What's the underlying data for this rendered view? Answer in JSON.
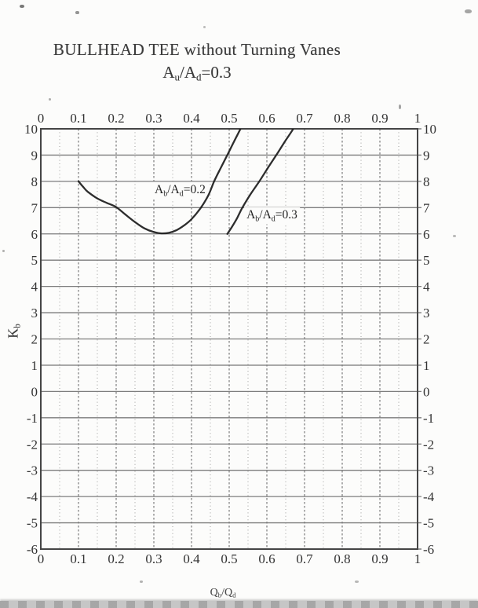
{
  "page": {
    "background_color": "#fcfcfb",
    "scan_band_color": "#c2c2c2"
  },
  "chart_data": {
    "type": "line",
    "title": "BULLHEAD TEE without Turning Vanes",
    "subtitle": "Au/Ad=0.3",
    "xlabel": "Qb/Qd",
    "ylabel": "Kb",
    "xlim": [
      0,
      1
    ],
    "ylim": [
      -6,
      10
    ],
    "x_tick_values": [
      0,
      0.1,
      0.2,
      0.3,
      0.4,
      0.5,
      0.6,
      0.7,
      0.8,
      0.9,
      1
    ],
    "x_tick_labels": [
      "0",
      "0.1",
      "0.2",
      "0.3",
      "0.4",
      "0.5",
      "0.6",
      "0.7",
      "0.8",
      "0.9",
      "1"
    ],
    "y_tick_values": [
      10,
      9,
      8,
      7,
      6,
      5,
      4,
      3,
      2,
      1,
      0,
      -1,
      -2,
      -3,
      -4,
      -5,
      -6
    ],
    "y_tick_labels": [
      "10",
      "9",
      "8",
      "7",
      "6",
      "5",
      "4",
      "3",
      "2",
      "1",
      "0",
      "-1",
      "-2",
      "-3",
      "-4",
      "-5",
      "-6"
    ],
    "axes_mirrored": true,
    "grid": {
      "horizontal_step": 1,
      "horizontal_style": "solid gray",
      "vertical_minor_step": 0.05,
      "vertical_major_step": 0.1,
      "vertical_style": "dotted gray"
    },
    "legend_position": "inline-curve-labels",
    "series": [
      {
        "key": "ab-ad-02",
        "name": "Ab/Ad=0.2",
        "label_parts": [
          {
            "t": "A"
          },
          {
            "t": "b",
            "sub": true
          },
          {
            "t": "/A"
          },
          {
            "t": "d",
            "sub": true
          },
          {
            "t": "=0.2"
          }
        ],
        "label_anchor": {
          "x": 0.302,
          "y": 7.55
        },
        "points": [
          [
            0.1,
            8.0
          ],
          [
            0.113,
            7.78
          ],
          [
            0.125,
            7.6
          ],
          [
            0.15,
            7.35
          ],
          [
            0.175,
            7.18
          ],
          [
            0.2,
            7.02
          ],
          [
            0.225,
            6.73
          ],
          [
            0.25,
            6.45
          ],
          [
            0.275,
            6.21
          ],
          [
            0.3,
            6.07
          ],
          [
            0.32,
            6.02
          ],
          [
            0.34,
            6.04
          ],
          [
            0.36,
            6.14
          ],
          [
            0.38,
            6.32
          ],
          [
            0.4,
            6.56
          ],
          [
            0.425,
            7.0
          ],
          [
            0.445,
            7.48
          ],
          [
            0.46,
            8.0
          ],
          [
            0.478,
            8.52
          ],
          [
            0.495,
            9.0
          ],
          [
            0.513,
            9.52
          ],
          [
            0.53,
            10.0
          ],
          [
            0.539,
            10.3
          ]
        ]
      },
      {
        "key": "ab-ad-03",
        "name": "Ab/Ad=0.3",
        "label_parts": [
          {
            "t": "A"
          },
          {
            "t": "b",
            "sub": true
          },
          {
            "t": "/A"
          },
          {
            "t": "d",
            "sub": true
          },
          {
            "t": "=0.3"
          }
        ],
        "label_anchor": {
          "x": 0.546,
          "y": 6.59
        },
        "points": [
          [
            0.495,
            6.0
          ],
          [
            0.508,
            6.28
          ],
          [
            0.521,
            6.6
          ],
          [
            0.535,
            7.0
          ],
          [
            0.557,
            7.52
          ],
          [
            0.58,
            8.0
          ],
          [
            0.602,
            8.5
          ],
          [
            0.625,
            9.0
          ],
          [
            0.647,
            9.5
          ],
          [
            0.67,
            10.0
          ],
          [
            0.678,
            10.3
          ]
        ]
      }
    ]
  },
  "labels": {
    "subtitle_parts": [
      {
        "t": "A"
      },
      {
        "t": "u",
        "sub": true
      },
      {
        "t": "/A"
      },
      {
        "t": "d",
        "sub": true
      },
      {
        "t": "=0.3"
      }
    ],
    "y_axis_parts": [
      {
        "t": "K"
      },
      {
        "t": "b",
        "sub": true
      }
    ],
    "x_axis_parts": [
      {
        "t": "Q"
      },
      {
        "t": "b",
        "sub": true
      },
      {
        "t": "/Q"
      },
      {
        "t": "d",
        "sub": true
      }
    ]
  }
}
